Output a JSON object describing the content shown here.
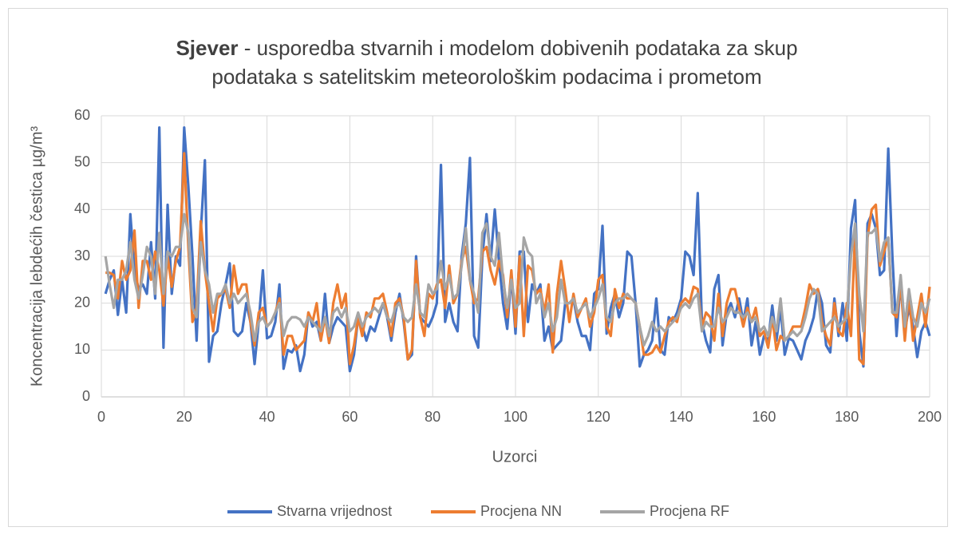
{
  "chart_data": {
    "type": "line",
    "title_bold": "Sjever",
    "title": [
      "- usporedba stvarnih i modelom dobivenih podataka za skup",
      "podataka s satelitskim meteorološkim podacima i prometom"
    ],
    "xlabel": "Uzorci",
    "ylabel": "Koncentracija lebdećih čestica µg/m³",
    "xlim": [
      0,
      200
    ],
    "xticks": [
      0,
      20,
      40,
      60,
      80,
      100,
      120,
      140,
      160,
      180,
      200
    ],
    "ylim": [
      0,
      60
    ],
    "yticks": [
      0,
      10,
      20,
      30,
      40,
      50,
      60
    ],
    "grid": true,
    "legend": "bottom",
    "x": [
      1,
      2,
      3,
      4,
      5,
      6,
      7,
      8,
      9,
      10,
      11,
      12,
      13,
      14,
      15,
      16,
      17,
      18,
      19,
      20,
      21,
      22,
      23,
      24,
      25,
      26,
      27,
      28,
      29,
      30,
      31,
      32,
      33,
      34,
      35,
      36,
      37,
      38,
      39,
      40,
      41,
      42,
      43,
      44,
      45,
      46,
      47,
      48,
      49,
      50,
      51,
      52,
      53,
      54,
      55,
      56,
      57,
      58,
      59,
      60,
      61,
      62,
      63,
      64,
      65,
      66,
      67,
      68,
      69,
      70,
      71,
      72,
      73,
      74,
      75,
      76,
      77,
      78,
      79,
      80,
      81,
      82,
      83,
      84,
      85,
      86,
      87,
      88,
      89,
      90,
      91,
      92,
      93,
      94,
      95,
      96,
      97,
      98,
      99,
      100,
      101,
      102,
      103,
      104,
      105,
      106,
      107,
      108,
      109,
      110,
      111,
      112,
      113,
      114,
      115,
      116,
      117,
      118,
      119,
      120,
      121,
      122,
      123,
      124,
      125,
      126,
      127,
      128,
      129,
      130,
      131,
      132,
      133,
      134,
      135,
      136,
      137,
      138,
      139,
      140,
      141,
      142,
      143,
      144,
      145,
      146,
      147,
      148,
      149,
      150,
      151,
      152,
      153,
      154,
      155,
      156,
      157,
      158,
      159,
      160,
      161,
      162,
      163,
      164,
      165,
      166,
      167,
      168,
      169,
      170,
      171,
      172,
      173,
      174,
      175,
      176,
      177,
      178,
      179,
      180,
      181,
      182,
      183,
      184,
      185,
      186,
      187,
      188,
      189,
      190,
      191,
      192,
      193,
      194,
      195,
      196,
      197,
      198,
      199,
      200
    ],
    "series": [
      {
        "name": "Stvarna vrijednost",
        "color": "#4472c4",
        "values": [
          22,
          25,
          27,
          17.5,
          25,
          18,
          39,
          27,
          23,
          24,
          22,
          33,
          21,
          57.5,
          10.5,
          41,
          22,
          30,
          28,
          57.5,
          45,
          30,
          12,
          35,
          50.5,
          7.5,
          13,
          14,
          20,
          24,
          28.5,
          14,
          13,
          14,
          20,
          16,
          7,
          16,
          27,
          12.5,
          13,
          16,
          24,
          6,
          10,
          9.5,
          11,
          5.5,
          9,
          18,
          15,
          16,
          12,
          22,
          11.5,
          15,
          17,
          16,
          15,
          5.5,
          9,
          17,
          15,
          12,
          15,
          14,
          17,
          20,
          17,
          12,
          18,
          22,
          16,
          8,
          9,
          30,
          17,
          16,
          15,
          17,
          20,
          49.5,
          16,
          20,
          16,
          14,
          30,
          37,
          51,
          13,
          10.5,
          30,
          39,
          29,
          40,
          29,
          20,
          14.5,
          26,
          13.5,
          31,
          31,
          16,
          24,
          22,
          24,
          12,
          15,
          10,
          11,
          12,
          20,
          20,
          21,
          16,
          13,
          13,
          10,
          22,
          23,
          36.5,
          13.5,
          19,
          22,
          17,
          20,
          31,
          30,
          20,
          6.5,
          9,
          10,
          12,
          21,
          10,
          9,
          17,
          16,
          18,
          21,
          31,
          30,
          26,
          43.5,
          16,
          12,
          9.5,
          23,
          26,
          11,
          18,
          20,
          17,
          21,
          16,
          21,
          11,
          16,
          9,
          13,
          12,
          19.5,
          12,
          19,
          9,
          12.5,
          12,
          10,
          8,
          12,
          14,
          17,
          23,
          20,
          11,
          9.5,
          21,
          13,
          20,
          12,
          36,
          42,
          14,
          6.5,
          37,
          39,
          36,
          26,
          27,
          53,
          30,
          13,
          25,
          14,
          19,
          15,
          8.5,
          14,
          16,
          13
        ]
      },
      {
        "name": "Procjena NN",
        "color": "#ed7d31",
        "values": [
          26.5,
          26.5,
          26,
          21,
          29,
          25,
          27,
          35.5,
          19,
          29,
          29,
          25,
          31,
          27,
          19.5,
          30,
          23.5,
          29,
          32,
          52,
          32,
          16,
          19,
          37.5,
          27,
          20,
          14,
          21,
          22,
          23,
          19,
          28,
          22,
          24,
          24,
          16,
          11,
          18,
          19,
          15,
          16,
          18,
          21,
          9,
          13,
          13,
          10,
          11,
          12,
          18,
          16,
          20,
          12,
          17,
          11.5,
          20,
          24,
          19,
          22,
          7,
          11,
          17,
          13,
          18,
          17,
          21,
          21,
          22,
          18,
          13,
          20,
          21,
          17,
          8,
          10,
          29,
          17,
          13,
          22,
          21,
          24,
          25,
          19,
          28,
          20,
          22,
          29,
          32,
          25,
          20,
          21,
          31,
          32,
          27,
          24,
          29,
          26,
          17,
          27,
          15,
          30,
          13,
          28,
          27,
          22,
          23,
          18,
          24,
          9.5,
          22,
          29,
          23,
          16,
          22,
          17,
          19,
          21,
          15,
          18,
          25,
          26,
          15,
          13,
          23,
          19,
          22,
          21,
          21,
          20,
          15,
          9,
          9,
          9.5,
          11,
          9.5,
          13,
          16,
          17,
          16,
          20,
          21,
          20,
          23.5,
          23,
          15,
          18,
          17,
          12,
          22,
          13,
          20,
          23,
          23,
          19,
          15,
          19,
          16,
          19,
          13,
          14,
          10.5,
          17,
          10,
          13,
          12,
          13,
          15,
          15,
          15,
          19,
          24,
          22,
          23,
          16,
          13,
          11,
          20,
          14,
          13,
          20,
          13,
          35,
          8,
          7,
          34,
          40,
          41,
          28,
          31,
          34,
          18,
          17,
          24,
          12,
          22,
          12,
          17,
          22,
          15,
          23.5
        ]
      },
      {
        "name": "Procjena RF",
        "color": "#a5a5a5",
        "values": [
          30,
          24,
          19,
          25,
          25,
          27,
          33,
          25,
          21,
          26,
          32,
          30,
          22,
          35,
          22,
          31,
          30,
          32,
          32,
          39,
          35,
          19,
          17,
          33,
          27,
          24,
          18,
          22,
          22,
          24,
          20,
          22,
          20,
          21,
          22,
          18,
          12,
          16,
          17,
          15,
          16,
          18,
          20,
          13,
          16,
          17,
          17,
          16.5,
          15,
          17,
          16,
          15,
          14,
          17,
          13,
          18,
          19,
          17,
          19,
          14,
          15,
          18,
          15,
          17,
          18,
          19,
          18,
          20,
          17,
          16,
          19,
          20,
          17,
          16,
          17,
          24,
          18,
          17,
          24,
          22,
          23,
          29,
          23,
          26,
          21,
          22,
          28,
          36,
          25,
          22,
          18,
          35,
          37,
          30,
          28,
          35,
          25,
          19,
          25,
          19,
          20,
          34,
          31,
          30,
          20,
          22,
          17,
          20,
          14,
          17,
          25,
          20,
          20,
          21,
          18,
          19,
          20,
          17,
          19,
          21,
          24,
          17,
          16,
          20,
          21,
          21,
          22,
          21,
          20,
          15,
          11,
          13,
          16,
          14,
          15,
          14,
          15,
          16,
          17,
          19,
          20,
          19,
          21,
          22,
          14,
          16,
          15,
          15,
          19,
          16,
          17,
          19,
          18,
          18,
          17,
          18,
          16,
          17,
          14,
          15,
          13,
          17,
          14,
          21,
          12,
          13,
          14,
          13,
          14,
          17,
          21,
          23,
          22,
          14,
          15,
          16,
          17,
          15,
          16,
          17,
          30,
          37,
          22,
          14,
          35,
          35,
          36,
          29,
          33,
          34,
          18,
          18,
          26,
          15,
          23,
          17,
          15,
          20,
          18,
          21
        ]
      }
    ]
  }
}
